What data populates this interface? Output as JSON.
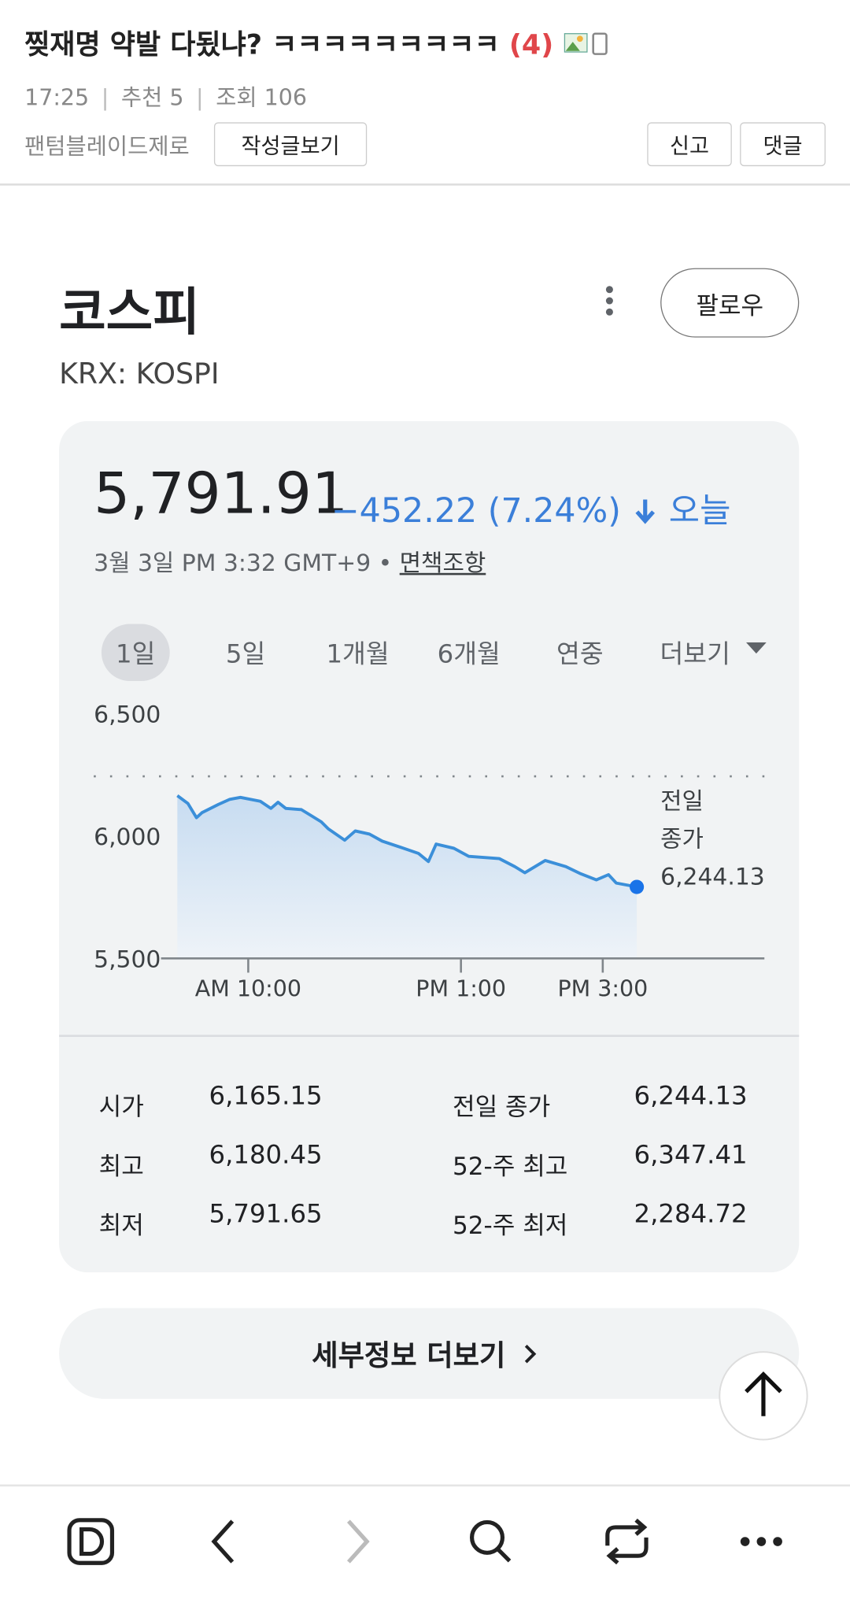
{
  "post": {
    "title": "찢재명 약발 다됬냐? ㅋㅋㅋㅋㅋㅋㅋㅋㅋ",
    "comment_count": "(4)",
    "time": "17:25",
    "recommend": "추천 5",
    "views": "조회 106",
    "author": "팬텀블레이드제로",
    "buttons": [
      "작성글보기",
      "신고",
      "댓글"
    ]
  },
  "stock": {
    "name": "코스피",
    "ticker": "KRX: KOSPI",
    "follow": "팔로우",
    "price": "5,791.91",
    "change": "−452.22 (7.24%)",
    "period_label": "오늘",
    "timestamp": "3월 3일 PM 3:32 GMT+9 •",
    "disclaimer": "면책조항",
    "ranges": [
      "1일",
      "5일",
      "1개월",
      "6개월",
      "연중",
      "더보기"
    ]
  },
  "chart_data": {
    "type": "line",
    "color": "#3b8fd9",
    "x": [
      9.0,
      9.15,
      9.27,
      9.35,
      9.58,
      9.74,
      9.89,
      10.17,
      10.32,
      10.42,
      10.53,
      10.75,
      10.89,
      11.03,
      11.13,
      11.36,
      11.51,
      11.71,
      11.89,
      12.11,
      12.4,
      12.54,
      12.65,
      12.9,
      13.11,
      13.54,
      13.76,
      13.9,
      14.19,
      14.48,
      14.69,
      14.91,
      15.08,
      15.19,
      15.48
    ],
    "values": [
      6165,
      6133,
      6075,
      6096,
      6129,
      6150,
      6158,
      6142,
      6113,
      6138,
      6113,
      6108,
      6083,
      6058,
      6029,
      5983,
      6021,
      6008,
      5979,
      5958,
      5929,
      5896,
      5967,
      5950,
      5917,
      5908,
      5875,
      5850,
      5900,
      5875,
      5846,
      5821,
      5842,
      5808,
      5792
    ],
    "xlim": [
      8.77,
      17.28
    ],
    "xticks": [
      {
        "value": 10,
        "label": "AM 10:00"
      },
      {
        "value": 13,
        "label": "PM 1:00"
      },
      {
        "value": 15,
        "label": "PM 3:00"
      }
    ],
    "ylim": [
      5500,
      6500
    ],
    "yticks": [
      {
        "value": 5500,
        "label": "5,500"
      },
      {
        "value": 6000,
        "label": "6,000"
      },
      {
        "value": 6500,
        "label": "6,500"
      }
    ],
    "reference": {
      "value": 6244.13,
      "label_lines": [
        "전일",
        "종가"
      ],
      "value_label": "6,244.13"
    }
  },
  "stats": {
    "rows": [
      [
        "시가",
        "6,165.15",
        "전일 종가",
        "6,244.13"
      ],
      [
        "최고",
        "6,180.45",
        "52-주 최고",
        "6,347.41"
      ],
      [
        "최저",
        "5,791.65",
        "52-주 최저",
        "2,284.72"
      ]
    ]
  },
  "more_details": "세부정보 더보기"
}
